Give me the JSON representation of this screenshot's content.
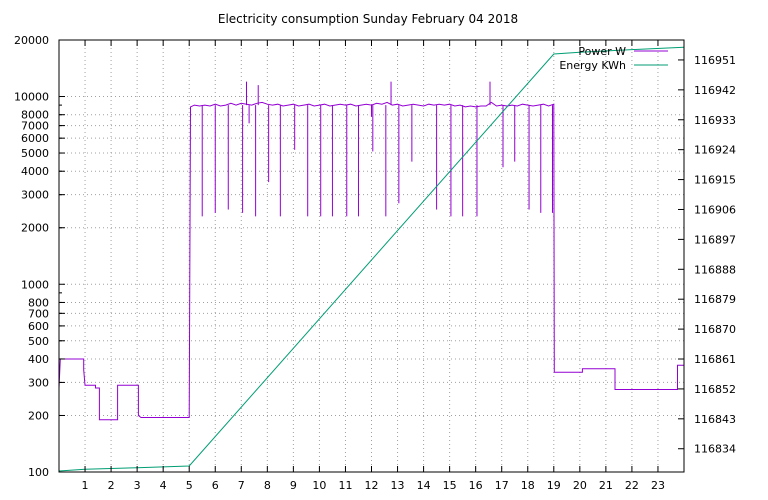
{
  "chart_data": {
    "type": "line",
    "title": "Electricity consumption Sunday February 04 2018",
    "x_range": [
      0,
      24
    ],
    "x_ticks": [
      1,
      2,
      3,
      4,
      5,
      6,
      7,
      8,
      9,
      10,
      11,
      12,
      13,
      14,
      15,
      16,
      17,
      18,
      19,
      20,
      21,
      22,
      23
    ],
    "y_scale": "log",
    "y_range": [
      100,
      20000
    ],
    "y_ticks": [
      {
        "v": 100,
        "label": "100"
      },
      {
        "v": 200,
        "label": "200"
      },
      {
        "v": 300,
        "label": "300"
      },
      {
        "v": 400,
        "label": "400"
      },
      {
        "v": 500,
        "label": "500"
      },
      {
        "v": 600,
        "label": "600"
      },
      {
        "v": 700,
        "label": "700"
      },
      {
        "v": 800,
        "label": "800"
      },
      {
        "v": 1000,
        "label": "1000"
      },
      {
        "v": 2000,
        "label": "2000"
      },
      {
        "v": 3000,
        "label": "3000"
      },
      {
        "v": 4000,
        "label": "4000"
      },
      {
        "v": 5000,
        "label": "5000"
      },
      {
        "v": 6000,
        "label": "6000"
      },
      {
        "v": 7000,
        "label": "7000"
      },
      {
        "v": 8000,
        "label": "8000"
      },
      {
        "v": 10000,
        "label": "10000"
      },
      {
        "v": 20000,
        "label": "20000"
      }
    ],
    "y2_range": [
      116827,
      116957
    ],
    "y2_ticks": [
      116834,
      116843,
      116852,
      116861,
      116870,
      116879,
      116888,
      116897,
      116906,
      116915,
      116924,
      116933,
      116942,
      116951
    ],
    "grid": true,
    "legend_position": "top-right",
    "series": [
      {
        "name": "Power W",
        "color": "#9400d3",
        "axis": "y",
        "points": [
          [
            0.0,
            280
          ],
          [
            0.05,
            400
          ],
          [
            0.95,
            400
          ],
          [
            0.95,
            350
          ],
          [
            1.0,
            290
          ],
          [
            1.4,
            290
          ],
          [
            1.4,
            280
          ],
          [
            1.55,
            280
          ],
          [
            1.55,
            190
          ],
          [
            2.25,
            190
          ],
          [
            2.25,
            290
          ],
          [
            3.05,
            290
          ],
          [
            3.05,
            200
          ],
          [
            3.15,
            195
          ],
          [
            5.0,
            195
          ],
          [
            5.05,
            8800
          ],
          [
            5.2,
            9000
          ],
          [
            5.4,
            8900
          ],
          [
            5.6,
            9000
          ],
          [
            5.8,
            8900
          ],
          [
            6.0,
            9100
          ],
          [
            6.2,
            8900
          ],
          [
            6.4,
            9000
          ],
          [
            6.6,
            9200
          ],
          [
            6.8,
            9000
          ],
          [
            7.0,
            9200
          ],
          [
            7.2,
            9100
          ],
          [
            7.4,
            9000
          ],
          [
            7.6,
            9200
          ],
          [
            7.8,
            9300
          ],
          [
            8.0,
            9100
          ],
          [
            8.2,
            9000
          ],
          [
            8.4,
            9100
          ],
          [
            8.6,
            8900
          ],
          [
            8.8,
            9000
          ],
          [
            9.0,
            9100
          ],
          [
            9.2,
            8900
          ],
          [
            9.4,
            9000
          ],
          [
            9.6,
            9100
          ],
          [
            9.8,
            8900
          ],
          [
            10.0,
            9000
          ],
          [
            10.2,
            9100
          ],
          [
            10.4,
            8900
          ],
          [
            10.6,
            9000
          ],
          [
            10.8,
            9100
          ],
          [
            11.0,
            9000
          ],
          [
            11.2,
            9100
          ],
          [
            11.4,
            8900
          ],
          [
            11.6,
            9000
          ],
          [
            11.8,
            9100
          ],
          [
            12.0,
            9000
          ],
          [
            12.2,
            9200
          ],
          [
            12.4,
            9100
          ],
          [
            12.6,
            9300
          ],
          [
            12.8,
            9000
          ],
          [
            13.0,
            9100
          ],
          [
            13.2,
            8900
          ],
          [
            13.4,
            9000
          ],
          [
            13.6,
            9100
          ],
          [
            13.8,
            9000
          ],
          [
            14.0,
            8900
          ],
          [
            14.2,
            9100
          ],
          [
            14.4,
            9000
          ],
          [
            14.6,
            9100
          ],
          [
            14.8,
            9000
          ],
          [
            15.0,
            9100
          ],
          [
            15.2,
            8900
          ],
          [
            15.4,
            9000
          ],
          [
            15.6,
            8800
          ],
          [
            15.8,
            8900
          ],
          [
            16.0,
            8800
          ],
          [
            16.2,
            8900
          ],
          [
            16.4,
            8900
          ],
          [
            16.6,
            9300
          ],
          [
            16.8,
            8900
          ],
          [
            17.0,
            9000
          ],
          [
            17.2,
            8900
          ],
          [
            17.4,
            9000
          ],
          [
            17.6,
            8900
          ],
          [
            17.8,
            9100
          ],
          [
            18.0,
            9000
          ],
          [
            18.2,
            8900
          ],
          [
            18.4,
            9000
          ],
          [
            18.6,
            9100
          ],
          [
            18.8,
            8900
          ],
          [
            19.0,
            9100
          ],
          [
            19.02,
            340
          ],
          [
            20.1,
            340
          ],
          [
            20.1,
            355
          ],
          [
            21.35,
            355
          ],
          [
            21.35,
            275
          ],
          [
            23.75,
            275
          ],
          [
            23.75,
            370
          ],
          [
            24.0,
            370
          ]
        ],
        "spikes": [
          [
            5.5,
            2300
          ],
          [
            6.0,
            2400
          ],
          [
            6.5,
            2500
          ],
          [
            7.05,
            2400
          ],
          [
            7.2,
            12000
          ],
          [
            7.3,
            7200
          ],
          [
            7.55,
            2300
          ],
          [
            7.65,
            11500
          ],
          [
            8.05,
            3500
          ],
          [
            8.5,
            2300
          ],
          [
            9.05,
            5200
          ],
          [
            9.55,
            2300
          ],
          [
            10.05,
            2300
          ],
          [
            10.5,
            2300
          ],
          [
            11.05,
            2300
          ],
          [
            11.5,
            2300
          ],
          [
            12.05,
            5100
          ],
          [
            12.0,
            7800
          ],
          [
            12.55,
            2300
          ],
          [
            12.75,
            12000
          ],
          [
            13.05,
            2700
          ],
          [
            13.55,
            4500
          ],
          [
            14.5,
            2500
          ],
          [
            15.05,
            2300
          ],
          [
            15.5,
            2300
          ],
          [
            16.05,
            2300
          ],
          [
            16.55,
            12000
          ],
          [
            17.05,
            4200
          ],
          [
            17.5,
            4500
          ],
          [
            18.05,
            2500
          ],
          [
            18.5,
            2400
          ],
          [
            18.95,
            2400
          ]
        ]
      },
      {
        "name": "Energy KWh",
        "color": "#009e73",
        "axis": "y2",
        "points": [
          [
            0.0,
            116827.3
          ],
          [
            1.0,
            116827.8
          ],
          [
            3.0,
            116828.3
          ],
          [
            5.0,
            116828.8
          ],
          [
            19.0,
            116952.8
          ],
          [
            20.0,
            116953.3
          ],
          [
            22.0,
            116954.1
          ],
          [
            24.0,
            116954.8
          ]
        ]
      }
    ]
  }
}
